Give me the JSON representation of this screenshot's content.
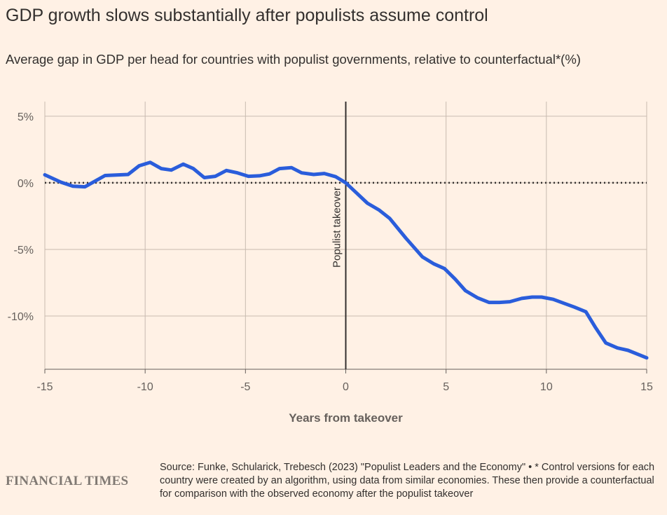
{
  "title": "GDP growth slows substantially after populists assume control",
  "subtitle": "Average gap in GDP per head for countries with populist governments, relative to counterfactual*(%)",
  "source": "Source: Funke, Schularick, Trebesch (2023) \"Populist Leaders and the Economy\" • * Control versions for each country were created by an algorithm, using data from similar economies. These then provide a counterfactual for comparison with the observed economy after the populist takeover",
  "logo": "FINANCIAL TIMES",
  "chart_data": {
    "type": "line",
    "title": "GDP growth slows substantially after populists assume control",
    "xlabel": "Years from takeover",
    "ylabel": "",
    "xlim": [
      -15,
      15
    ],
    "ylim": [
      -14,
      6.1
    ],
    "xticks": [
      -15,
      -10,
      -5,
      0,
      5,
      10,
      15
    ],
    "xtick_labels": [
      "-15",
      "-10",
      "-5",
      "0",
      "5",
      "10",
      "15"
    ],
    "yticks": [
      5,
      0,
      -5,
      -10
    ],
    "ytick_labels": [
      "5%",
      "0%",
      "-5%",
      "-10%"
    ],
    "grid": true,
    "annotation": "Populist takeover",
    "series": [
      {
        "name": "Average gap in GDP per head",
        "color": "#2a5ddb",
        "x": [
          -15,
          -14.2,
          -13.6,
          -13,
          -12,
          -10.85,
          -10.3,
          -9.75,
          -9.2,
          -8.7,
          -8.1,
          -7.6,
          -7.05,
          -6.5,
          -5.95,
          -5.4,
          -4.85,
          -4.3,
          -3.8,
          -3.3,
          -2.7,
          -2.2,
          -1.6,
          -1.07,
          -0.5,
          0,
          1.08,
          1.67,
          2.19,
          3.0,
          3.82,
          4.4,
          4.92,
          5.45,
          5.97,
          6.56,
          7.14,
          7.66,
          8.18,
          8.77,
          9.29,
          9.76,
          10.34,
          10.86,
          11.39,
          11.97,
          12.43,
          12.96,
          13.54,
          14.07,
          15
        ],
        "y": [
          0.6,
          0.05,
          -0.25,
          -0.3,
          0.55,
          0.63,
          1.28,
          1.54,
          1.07,
          0.96,
          1.4,
          1.07,
          0.39,
          0.49,
          0.93,
          0.75,
          0.49,
          0.53,
          0.67,
          1.07,
          1.14,
          0.75,
          0.63,
          0.7,
          0.46,
          0,
          -1.53,
          -2.05,
          -2.67,
          -4.16,
          -5.56,
          -6.09,
          -6.44,
          -7.23,
          -8.1,
          -8.63,
          -8.98,
          -8.98,
          -8.93,
          -8.68,
          -8.58,
          -8.58,
          -8.75,
          -9.04,
          -9.33,
          -9.68,
          -10.82,
          -12.02,
          -12.4,
          -12.58,
          -13.14
        ]
      }
    ]
  }
}
